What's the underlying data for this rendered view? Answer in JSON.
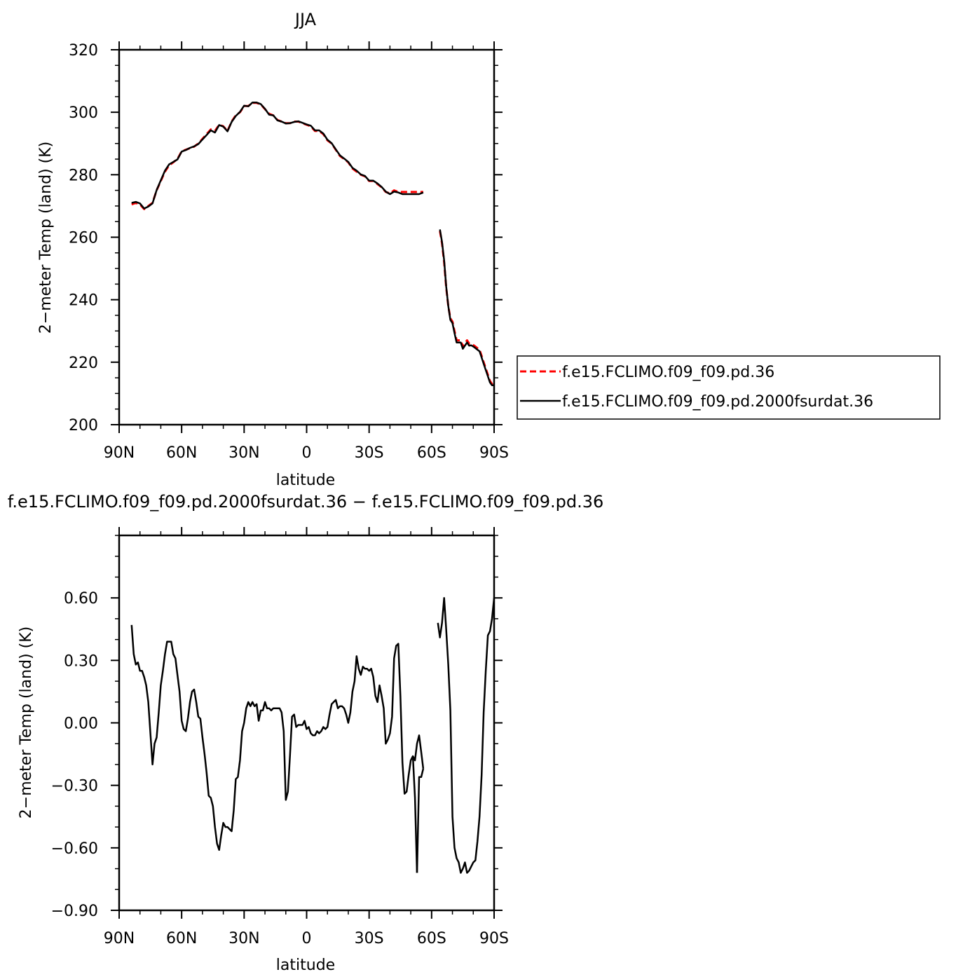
{
  "chart_data": [
    {
      "type": "line",
      "title": "JJA",
      "xlabel": "latitude",
      "ylabel": "2−meter Temp (land) (K)",
      "x_unit": "degrees latitude (positive = N, negative = S)",
      "xlim": [
        90,
        -90
      ],
      "ylim": [
        200,
        320
      ],
      "x_ticks": [
        90,
        60,
        30,
        0,
        -30,
        -60,
        -90
      ],
      "x_tick_labels": [
        "90N",
        "60N",
        "30N",
        "0",
        "30S",
        "60S",
        "90S"
      ],
      "y_ticks": [
        200,
        220,
        240,
        260,
        280,
        300,
        320
      ],
      "y_tick_labels": [
        "200",
        "220",
        "240",
        "260",
        "280",
        "300",
        "320"
      ],
      "legend_position": "right",
      "series": [
        {
          "name": "f.e15.FCLIMO.f09_f09.pd.36",
          "color": "#ff0000",
          "dash": "dashed",
          "segments": [
            {
              "x": [
                84,
                82,
                80,
                78,
                76,
                74,
                72,
                70,
                68,
                66,
                64,
                62,
                60,
                58,
                56,
                54,
                52,
                50,
                48,
                46,
                44,
                42,
                40,
                38,
                36,
                34,
                32,
                30,
                28,
                26,
                24,
                22,
                20,
                18,
                16,
                14,
                12,
                10,
                8,
                6,
                4,
                2,
                0,
                -2,
                -4,
                -6,
                -8,
                -10,
                -12,
                -14,
                -16,
                -18,
                -20,
                -22,
                -24,
                -26,
                -28,
                -30,
                -32,
                -34,
                -36,
                -38,
                -40,
                -42,
                -44,
                -46,
                -48,
                -50,
                -52,
                -54,
                -56
              ],
              "y": [
                270.5,
                271,
                270.5,
                269,
                270,
                271,
                275,
                278,
                281,
                283,
                284,
                285,
                287.5,
                288,
                288.5,
                289,
                290,
                291.5,
                293,
                294.5,
                294,
                296,
                295.5,
                294,
                297,
                299,
                300,
                302,
                302,
                303,
                303,
                302.5,
                301,
                299.5,
                299,
                297.5,
                297,
                296.5,
                296.5,
                297,
                297,
                296.5,
                296,
                295.5,
                294,
                294,
                293,
                291,
                290,
                288,
                286,
                285,
                284,
                282,
                281,
                280,
                279.5,
                278,
                278,
                277,
                276,
                274.5,
                274,
                275,
                274.5,
                274.5,
                274.5,
                274.5,
                274.5,
                274.5,
                274.5
              ]
            },
            {
              "x": [
                -64,
                -65,
                -66,
                -67,
                -68,
                -69,
                -70,
                -71,
                -72,
                -73,
                -74,
                -75,
                -76,
                -77,
                -78,
                -79,
                -80,
                -81,
                -82,
                -83,
                -84,
                -85,
                -86,
                -87,
                -88,
                -89,
                -90
              ],
              "y": [
                262,
                258,
                252,
                244,
                238,
                234,
                233,
                230,
                227,
                227,
                227,
                225,
                226,
                227,
                226,
                226,
                225.5,
                225,
                224.5,
                224,
                222,
                220,
                218,
                216,
                214,
                213,
                212
              ]
            }
          ]
        },
        {
          "name": "f.e15.FCLIMO.f09_f09.pd.2000fsurdat.36",
          "color": "#000000",
          "dash": "solid",
          "segments": [
            {
              "x": [
                84,
                82,
                80,
                78,
                76,
                74,
                72,
                70,
                68,
                66,
                64,
                62,
                60,
                58,
                56,
                54,
                52,
                50,
                48,
                46,
                44,
                42,
                40,
                38,
                36,
                34,
                32,
                30,
                28,
                26,
                24,
                22,
                20,
                18,
                16,
                14,
                12,
                10,
                8,
                6,
                4,
                2,
                0,
                -2,
                -4,
                -6,
                -8,
                -10,
                -12,
                -14,
                -16,
                -18,
                -20,
                -22,
                -24,
                -26,
                -28,
                -30,
                -32,
                -34,
                -36,
                -38,
                -40,
                -42,
                -44,
                -46,
                -48,
                -50,
                -52,
                -54,
                -56
              ],
              "y": [
                271,
                271.3,
                270.8,
                269.2,
                269.8,
                270.8,
                275.1,
                278.2,
                281.3,
                283.3,
                284.1,
                284.9,
                287.4,
                287.9,
                288.6,
                289.1,
                289.8,
                291.3,
                292.7,
                294.2,
                293.5,
                295.9,
                295.4,
                293.9,
                296.9,
                298.8,
                300.1,
                302.1,
                301.9,
                303.1,
                303.1,
                302.6,
                301.1,
                299.2,
                299,
                297.4,
                297,
                296.4,
                296.5,
                296.9,
                297.1,
                296.6,
                296.1,
                295.7,
                294.2,
                294.2,
                293.2,
                291.2,
                290.1,
                288.1,
                286.2,
                285.2,
                284.1,
                282.2,
                281.3,
                280.1,
                279.6,
                278.1,
                278.1,
                277.2,
                276.1,
                274.6,
                273.8,
                274.6,
                274.3,
                273.8,
                273.8,
                273.8,
                273.8,
                273.8,
                274.3
              ]
            },
            {
              "x": [
                -64,
                -65,
                -66,
                -67,
                -68,
                -69,
                -70,
                -71,
                -72,
                -73,
                -74,
                -75,
                -76,
                -77,
                -78,
                -79,
                -80,
                -81,
                -82,
                -83,
                -84,
                -85,
                -86,
                -87,
                -88,
                -89,
                -90
              ],
              "y": [
                262.5,
                258.4,
                252.6,
                244.3,
                238,
                233.5,
                232.5,
                229.3,
                226.3,
                226.3,
                226.3,
                224.3,
                225.3,
                226.3,
                225.3,
                225.4,
                225,
                224.5,
                224,
                223.5,
                221.5,
                219.5,
                217.5,
                215.5,
                213.5,
                212.6,
                212.6
              ]
            }
          ]
        }
      ]
    },
    {
      "type": "line",
      "title": "f.e15.FCLIMO.f09_f09.pd.2000fsurdat.36 − f.e15.FCLIMO.f09_f09.pd.36",
      "xlabel": "latitude",
      "ylabel": "2−meter Temp (land) (K)",
      "x_unit": "degrees latitude (positive = N, negative = S)",
      "xlim": [
        90,
        -90
      ],
      "ylim": [
        -0.9,
        0.9
      ],
      "x_ticks": [
        90,
        60,
        30,
        0,
        -30,
        -60,
        -90
      ],
      "x_tick_labels": [
        "90N",
        "60N",
        "30N",
        "0",
        "30S",
        "60S",
        "90S"
      ],
      "y_ticks": [
        -0.9,
        -0.6,
        -0.3,
        0,
        0.3,
        0.6
      ],
      "y_tick_labels": [
        "−0.90",
        "−0.60",
        "−0.30",
        "0.00",
        "0.30",
        "0.60"
      ],
      "series": [
        {
          "color": "#000000",
          "dash": "solid",
          "segments": [
            {
              "x": [
                84,
                83,
                82,
                81,
                80,
                79,
                78,
                77,
                76,
                75,
                74,
                73,
                72,
                71,
                70,
                69,
                68,
                67,
                66,
                65,
                64,
                63,
                62,
                61,
                60,
                59,
                58,
                57,
                56,
                55,
                54,
                53,
                52,
                51,
                50,
                49,
                48,
                47,
                46,
                45,
                44,
                43,
                42,
                41,
                40,
                39,
                38,
                37,
                36,
                35,
                34,
                33,
                32,
                31,
                30,
                29,
                28,
                27,
                26,
                25,
                24,
                23,
                22,
                21,
                20,
                19,
                18,
                17,
                16,
                15,
                14,
                13,
                12,
                11,
                10,
                9,
                8,
                7,
                6,
                5,
                4,
                3,
                2,
                1,
                0,
                -1,
                -2,
                -3,
                -4,
                -5,
                -6,
                -7,
                -8,
                -9,
                -10,
                -11,
                -12,
                -13,
                -14,
                -15,
                -16,
                -17,
                -18,
                -19,
                -20,
                -21,
                -22,
                -23,
                -24,
                -25,
                -26,
                -27,
                -28,
                -29,
                -30,
                -31,
                -32,
                -33,
                -34,
                -35,
                -36,
                -37,
                -38,
                -39,
                -40,
                -41,
                -42,
                -43,
                -44,
                -45,
                -46,
                -47,
                -48,
                -49,
                -50,
                -51,
                -52,
                -53,
                -54,
                -55,
                -56
              ],
              "y": [
                0.47,
                0.33,
                0.28,
                0.29,
                0.25,
                0.25,
                0.22,
                0.18,
                0.1,
                -0.05,
                -0.2,
                -0.1,
                -0.07,
                0.05,
                0.18,
                0.25,
                0.33,
                0.39,
                0.39,
                0.39,
                0.33,
                0.31,
                0.23,
                0.15,
                0.01,
                -0.03,
                -0.04,
                0.02,
                0.1,
                0.15,
                0.16,
                0.1,
                0.03,
                0.02,
                -0.07,
                -0.15,
                -0.24,
                -0.35,
                -0.36,
                -0.4,
                -0.5,
                -0.58,
                -0.61,
                -0.54,
                -0.48,
                -0.5,
                -0.5,
                -0.51,
                -0.52,
                -0.42,
                -0.27,
                -0.26,
                -0.18,
                -0.04,
                0,
                0.07,
                0.1,
                0.08,
                0.1,
                0.08,
                0.09,
                0.01,
                0.06,
                0.06,
                0.1,
                0.07,
                0.07,
                0.06,
                0.07,
                0.07,
                0.07,
                0.07,
                0.05,
                -0.04,
                -0.37,
                -0.33,
                -0.16,
                0.03,
                0.04,
                -0.02,
                -0.01,
                -0.01,
                -0.01,
                0.01,
                -0.03,
                -0.02,
                -0.05,
                -0.06,
                -0.06,
                -0.04,
                -0.05,
                -0.04,
                -0.02,
                -0.03,
                -0.02,
                0.04,
                0.09,
                0.1,
                0.11,
                0.07,
                0.08,
                0.08,
                0.07,
                0.04,
                0,
                0.05,
                0.15,
                0.2,
                0.32,
                0.26,
                0.23,
                0.27,
                0.26,
                0.26,
                0.25,
                0.26,
                0.22,
                0.13,
                0.1,
                0.18,
                0.13,
                0.07,
                -0.1,
                -0.08,
                -0.05,
                0.03,
                0.31,
                0.37,
                0.38,
                0.13,
                -0.19,
                -0.34,
                -0.33,
                -0.25,
                -0.18,
                -0.16,
                -0.18,
                -0.1,
                -0.06,
                -0.14,
                -0.22
              ]
            },
            {
              "x": [
                -56,
                -55,
                -54,
                -53
              ],
              "y": [
                -0.22,
                -0.26,
                -0.26,
                -0.72
              ]
            },
            {
              "x": [
                -53,
                -52,
                -51
              ],
              "y": [
                -0.72,
                -0.36,
                -0.16
              ]
            },
            {
              "x": [
                -63,
                -64,
                -65,
                -66,
                -67,
                -68,
                -69,
                -70,
                -71,
                -72,
                -73,
                -74,
                -75,
                -76,
                -77,
                -78,
                -79,
                -80,
                -81,
                -82,
                -83,
                -84,
                -85,
                -86,
                -87,
                -88,
                -89,
                -90
              ],
              "y": [
                0.48,
                0.41,
                0.48,
                0.6,
                0.45,
                0.28,
                0.06,
                -0.45,
                -0.6,
                -0.65,
                -0.67,
                -0.72,
                -0.7,
                -0.67,
                -0.72,
                -0.71,
                -0.69,
                -0.67,
                -0.66,
                -0.57,
                -0.45,
                -0.25,
                0.05,
                0.25,
                0.42,
                0.44,
                0.5,
                0.6
              ]
            }
          ]
        }
      ]
    }
  ]
}
